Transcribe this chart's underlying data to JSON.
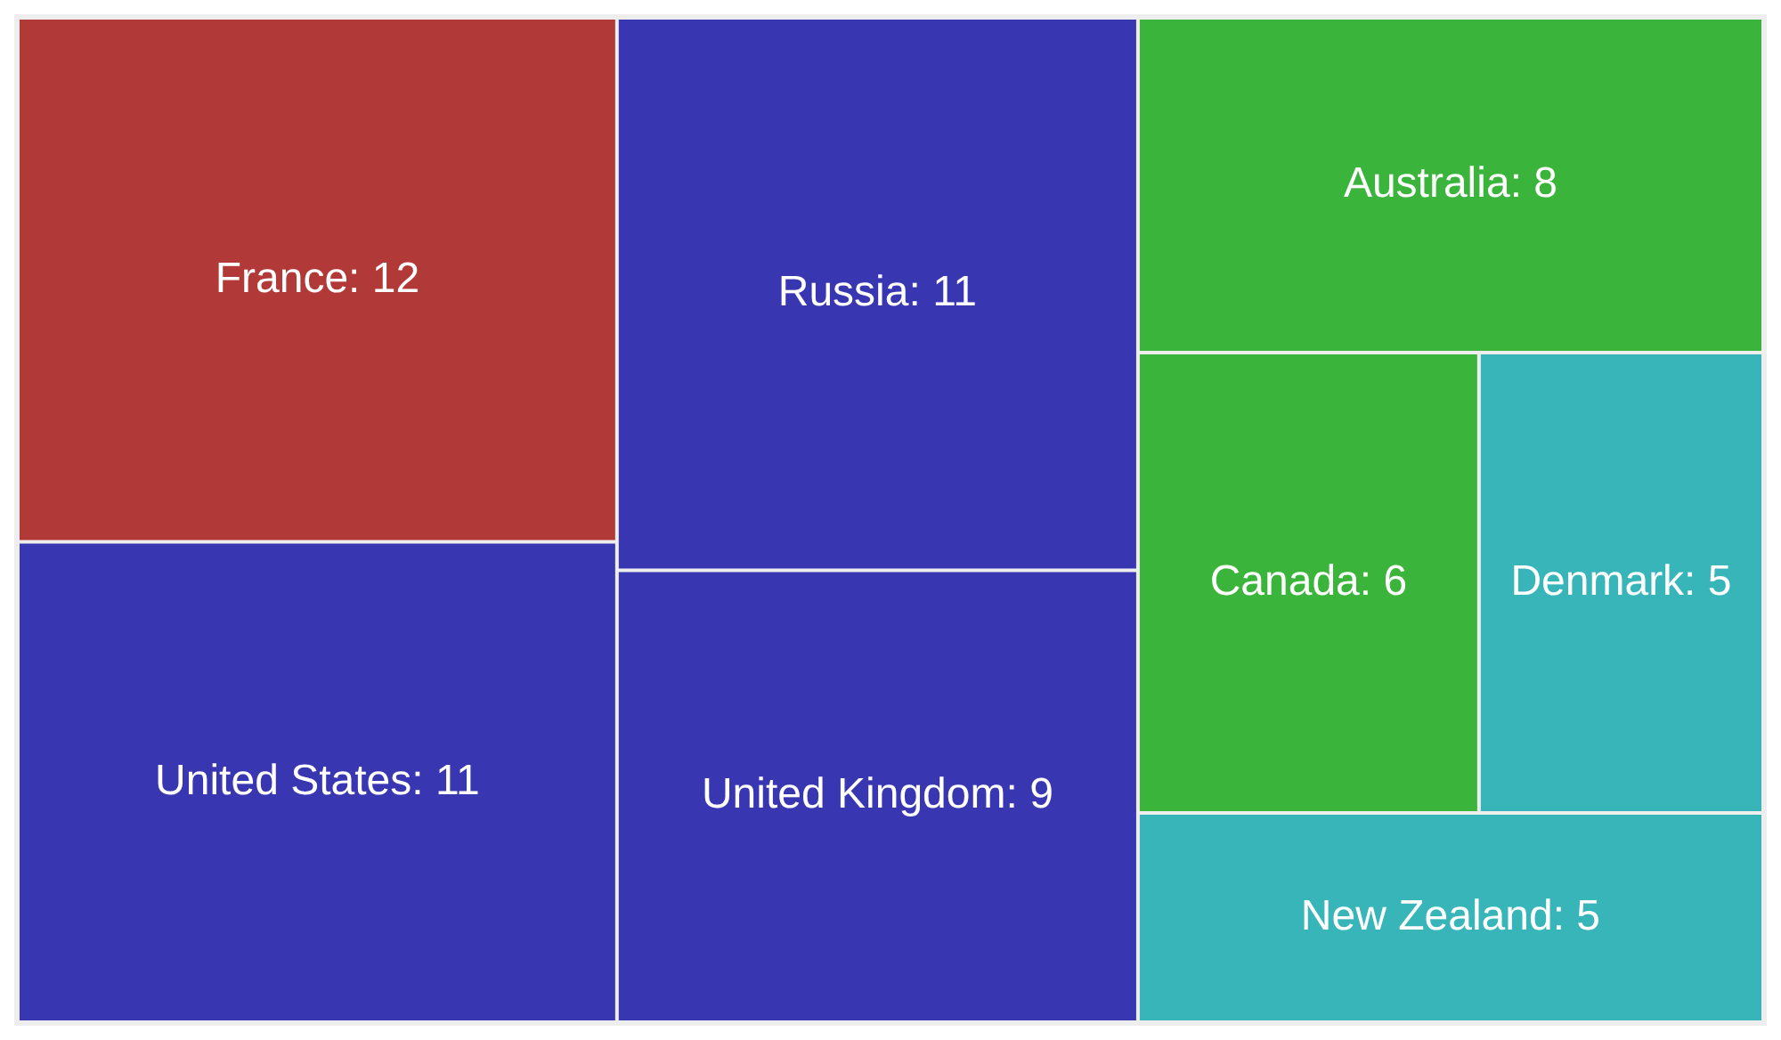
{
  "chart_data": {
    "type": "other",
    "categories": [
      "France",
      "United States",
      "Russia",
      "United Kingdom",
      "Australia",
      "Canada",
      "Denmark",
      "New Zealand"
    ],
    "values": [
      12,
      11,
      11,
      9,
      8,
      6,
      5,
      5
    ],
    "colors": [
      "#b13937",
      "#3936b1",
      "#3936b1",
      "#3936b1",
      "#3ab43a",
      "#3ab43a",
      "#38b5b9",
      "#38b5b9"
    ],
    "value_labels": [
      ": 12",
      ": 11",
      ": 11",
      ": 9",
      ": 8",
      ": 6",
      ": 5",
      ": 5"
    ]
  }
}
